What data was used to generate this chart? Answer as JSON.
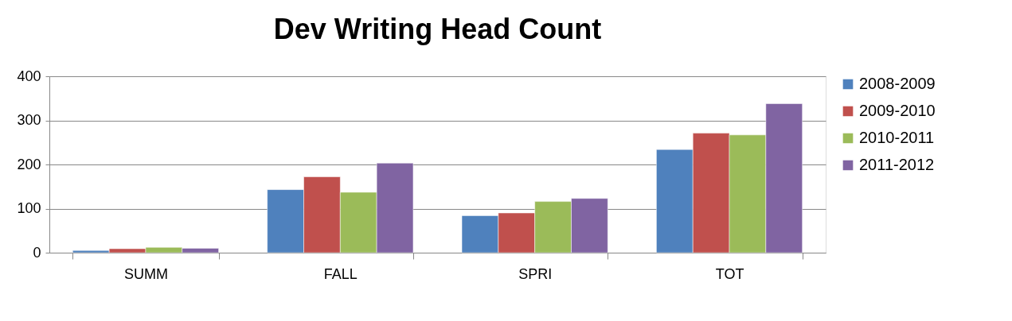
{
  "chart_data": {
    "type": "bar",
    "title": "Dev Writing Head Count",
    "categories": [
      "SUMM",
      "FALL",
      "SPRI",
      "TOT"
    ],
    "series": [
      {
        "name": "2008-2009",
        "color": "#4f81bd",
        "values": [
          5,
          143,
          84,
          234
        ]
      },
      {
        "name": "2009-2010",
        "color": "#c0504d",
        "values": [
          9,
          172,
          90,
          271
        ]
      },
      {
        "name": "2010-2011",
        "color": "#9bbb59",
        "values": [
          12,
          137,
          116,
          267
        ]
      },
      {
        "name": "2011-2012",
        "color": "#8064a2",
        "values": [
          10,
          203,
          123,
          338
        ]
      }
    ],
    "ylim": [
      0,
      400
    ],
    "yticks": [
      0,
      100,
      200,
      300,
      400
    ],
    "grid": "y",
    "legend": "right"
  }
}
